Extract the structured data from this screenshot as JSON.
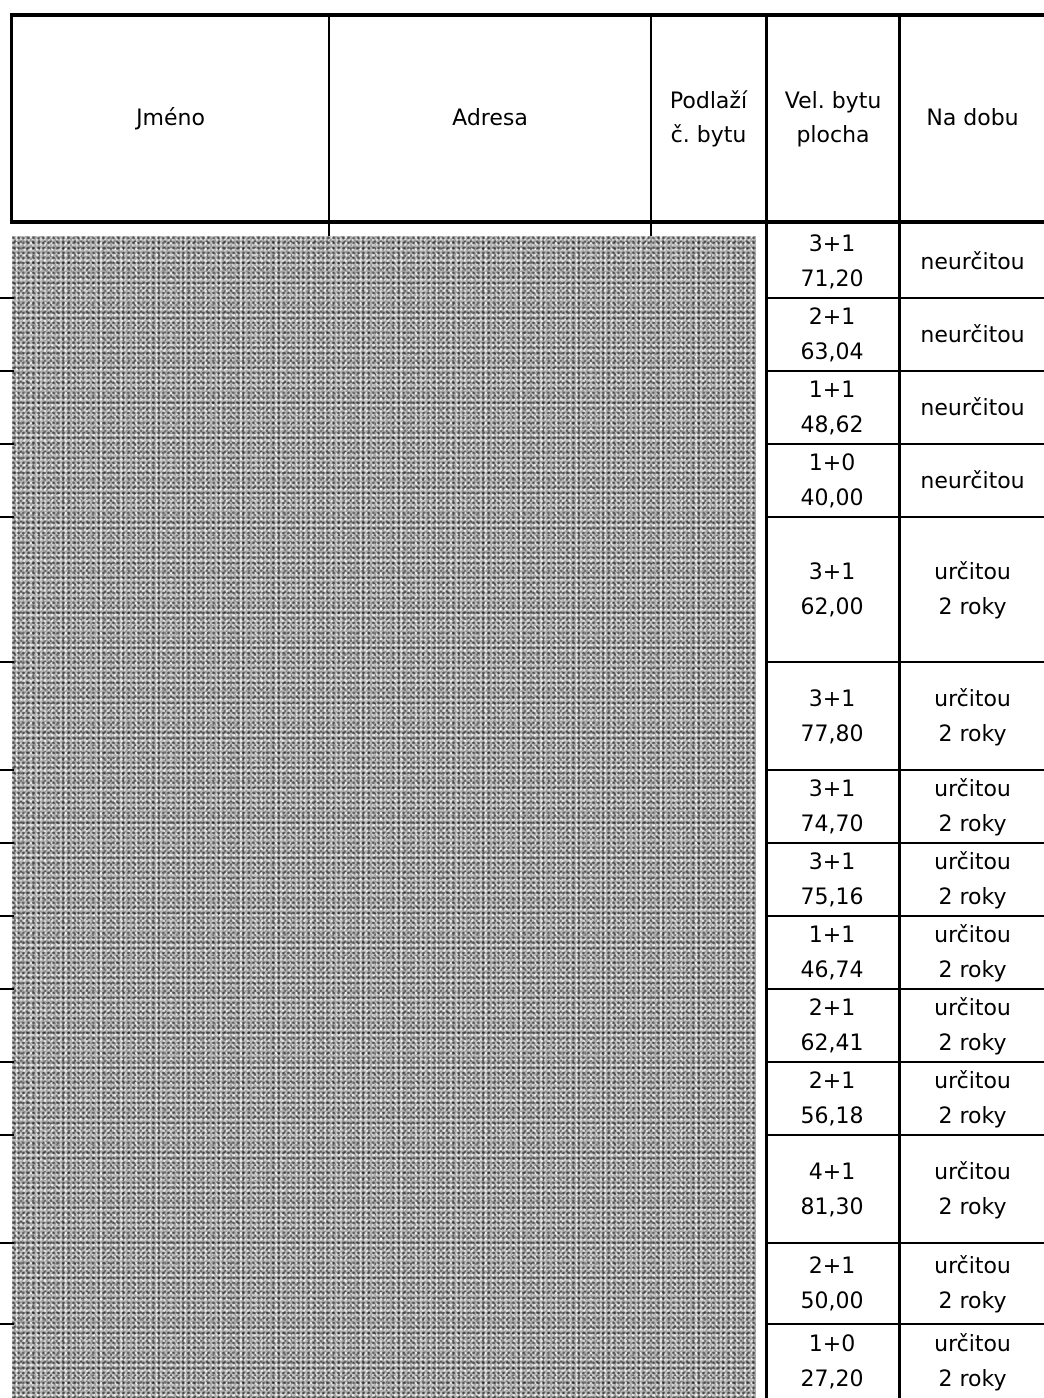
{
  "header": {
    "col_name": "Jméno",
    "col_address": "Adresa",
    "col_floor_line1": "Podlaží",
    "col_floor_line2": "č. bytu",
    "col_size_line1": "Vel. bytu",
    "col_size_line2": "plocha",
    "col_term": "Na dobu"
  },
  "rows": [
    {
      "type": "3+1",
      "area": "71,20",
      "term": "neurčitou",
      "term_detail": ""
    },
    {
      "type": "2+1",
      "area": "63,04",
      "term": "neurčitou",
      "term_detail": ""
    },
    {
      "type": "1+1",
      "area": "48,62",
      "term": "neurčitou",
      "term_detail": ""
    },
    {
      "type": "1+0",
      "area": "40,00",
      "term": "neurčitou",
      "term_detail": ""
    },
    {
      "type": "3+1",
      "area": "62,00",
      "term": "určitou",
      "term_detail": "2 roky"
    },
    {
      "type": "3+1",
      "area": "77,80",
      "term": "určitou",
      "term_detail": "2 roky"
    },
    {
      "type": "3+1",
      "area": "74,70",
      "term": "určitou",
      "term_detail": "2 roky"
    },
    {
      "type": "3+1",
      "area": "75,16",
      "term": "určitou",
      "term_detail": "2 roky"
    },
    {
      "type": "1+1",
      "area": "46,74",
      "term": "určitou",
      "term_detail": "2 roky"
    },
    {
      "type": "2+1",
      "area": "62,41",
      "term": "určitou",
      "term_detail": "2 roky"
    },
    {
      "type": "2+1",
      "area": "56,18",
      "term": "určitou",
      "term_detail": "2 roky"
    },
    {
      "type": "4+1",
      "area": "81,30",
      "term": "určitou",
      "term_detail": "2 roky"
    },
    {
      "type": "2+1",
      "area": "50,00",
      "term": "určitou",
      "term_detail": "2 roky"
    },
    {
      "type": "1+0",
      "area": "27,20",
      "term": "určitou",
      "term_detail": "2 roky"
    }
  ]
}
